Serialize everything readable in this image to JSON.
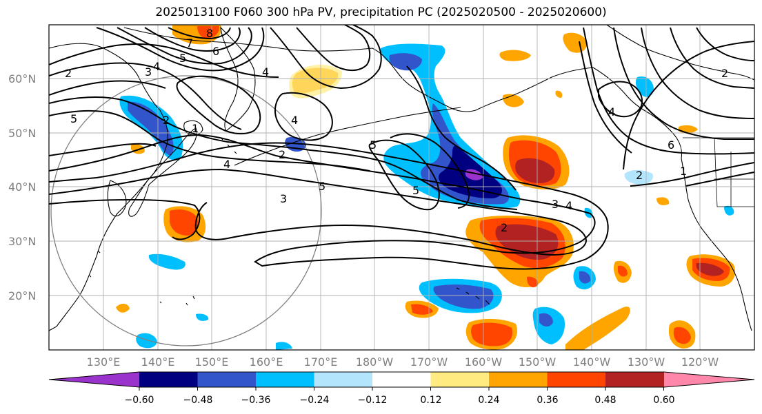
{
  "title": "2025013100 F060 300 hPa PV, precipitation PC (2025020500 - 2025020600)",
  "map": {
    "lat_labels": [
      "60°N",
      "50°N",
      "40°N",
      "30°N",
      "20°N"
    ],
    "lon_labels": [
      "130°E",
      "140°E",
      "150°E",
      "160°E",
      "170°E",
      "180°W",
      "170°W",
      "160°W",
      "150°W",
      "140°W",
      "130°W",
      "120°W"
    ],
    "contour_labels": [
      "8",
      "7",
      "6",
      "5",
      "4",
      "3",
      "2",
      "4",
      "5",
      "1",
      "2",
      "4",
      "2",
      "4",
      "3",
      "5",
      "5",
      "5",
      "3",
      "4",
      "2",
      "4",
      "6",
      "2",
      "1",
      "2"
    ]
  },
  "colorbar": {
    "tick_labels": [
      "−0.60",
      "−0.48",
      "−0.36",
      "−0.24",
      "−0.12",
      "0.12",
      "0.24",
      "0.36",
      "0.48",
      "0.60"
    ],
    "colors": [
      "#9933cc",
      "#000080",
      "#3355cc",
      "#00bfff",
      "#b3e5fc",
      "#ffffff",
      "#ffeb80",
      "#ffa500",
      "#ff4500",
      "#b22222",
      "#ff88aa"
    ]
  }
}
